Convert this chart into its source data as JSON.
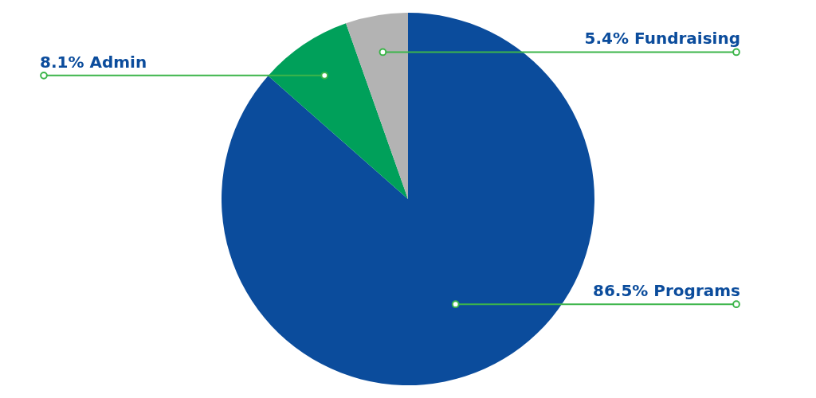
{
  "chart_data": {
    "type": "pie",
    "categories": [
      "Programs",
      "Admin",
      "Fundraising"
    ],
    "values": [
      86.5,
      8.1,
      5.4
    ],
    "colors": [
      "#0b4c9c",
      "#00a05a",
      "#b3b3b3"
    ],
    "value_labels": [
      "86.5%",
      "8.1%",
      "5.4%"
    ]
  }
}
